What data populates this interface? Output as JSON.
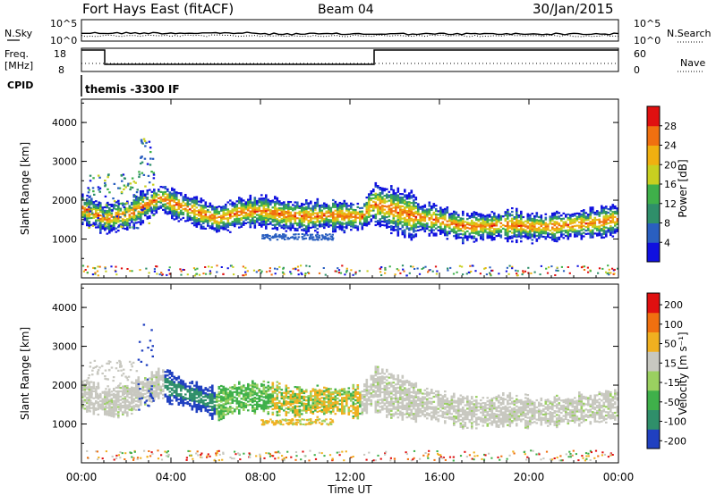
{
  "header": {
    "radar": "Fort Hays East (fitACF)",
    "beam": "Beam 04",
    "date": "30/Jan/2015"
  },
  "params": {
    "nsky_label": "N.Sky",
    "nsky_ticks": [
      "10^5",
      "10^0"
    ],
    "nsearch_label": "N.Search",
    "nsearch_ticks": [
      "10^5",
      "10^0"
    ],
    "freq_label": "Freq.",
    "freq_unit": "[MHz]",
    "freq_ticks": [
      "18",
      "8"
    ],
    "nave_label": "Nave",
    "nave_ticks": [
      "60",
      "0"
    ],
    "cpid_label": "CPID",
    "cpid_value": "themis -3300 IF"
  },
  "chart_data": [
    {
      "type": "heatmap",
      "panel": "power",
      "ylabel": "Slant Range [km]",
      "yticks": [
        "1000",
        "2000",
        "3000",
        "4000"
      ],
      "ylim": [
        0,
        4600
      ],
      "xlim": [
        0,
        24
      ],
      "colorbar_label": "Power [dB]",
      "colorbar_ticks": [
        "4",
        "8",
        "12",
        "16",
        "20",
        "24",
        "28"
      ],
      "colorbar_colors": [
        "#1010e0",
        "#2a5fc0",
        "#2f8f6a",
        "#3fb04a",
        "#c8d020",
        "#f0b010",
        "#f07010",
        "#e01010"
      ],
      "echo_band_center_km": [
        {
          "t": 0.0,
          "km": 1800
        },
        {
          "t": 0.5,
          "km": 1700
        },
        {
          "t": 1.0,
          "km": 1550
        },
        {
          "t": 2.0,
          "km": 1650
        },
        {
          "t": 3.5,
          "km": 2100
        },
        {
          "t": 4.0,
          "km": 1950
        },
        {
          "t": 5.0,
          "km": 1750
        },
        {
          "t": 6.0,
          "km": 1550
        },
        {
          "t": 7.0,
          "km": 1700
        },
        {
          "t": 8.0,
          "km": 1750
        },
        {
          "t": 9.0,
          "km": 1650
        },
        {
          "t": 10.0,
          "km": 1600
        },
        {
          "t": 11.0,
          "km": 1650
        },
        {
          "t": 12.5,
          "km": 1600
        },
        {
          "t": 13.0,
          "km": 1950
        },
        {
          "t": 14.0,
          "km": 1750
        },
        {
          "t": 15.0,
          "km": 1600
        },
        {
          "t": 16.0,
          "km": 1500
        },
        {
          "t": 17.0,
          "km": 1350
        },
        {
          "t": 18.0,
          "km": 1350
        },
        {
          "t": 19.0,
          "km": 1400
        },
        {
          "t": 20.0,
          "km": 1350
        },
        {
          "t": 21.0,
          "km": 1350
        },
        {
          "t": 22.0,
          "km": 1400
        },
        {
          "t": 23.0,
          "km": 1450
        },
        {
          "t": 24.0,
          "km": 1550
        }
      ]
    },
    {
      "type": "heatmap",
      "panel": "velocity",
      "ylabel": "Slant Range [km]",
      "yticks": [
        "1000",
        "2000",
        "3000",
        "4000"
      ],
      "ylim": [
        0,
        4600
      ],
      "xlim": [
        0,
        24
      ],
      "xlabel": "Time UT",
      "xticks": [
        "00:00",
        "04:00",
        "08:00",
        "12:00",
        "16:00",
        "20:00",
        "00:00"
      ],
      "colorbar_label": "Velocity [m s⁻¹]",
      "colorbar_ticks": [
        "200",
        "100",
        "50",
        "15",
        "-15",
        "-50",
        "-100",
        "-200"
      ],
      "colorbar_colors": [
        "#2040c0",
        "#2f8f6a",
        "#3fb04a",
        "#9ad060",
        "#c8c8c0",
        "#f0b020",
        "#f07010",
        "#e01010"
      ]
    }
  ]
}
